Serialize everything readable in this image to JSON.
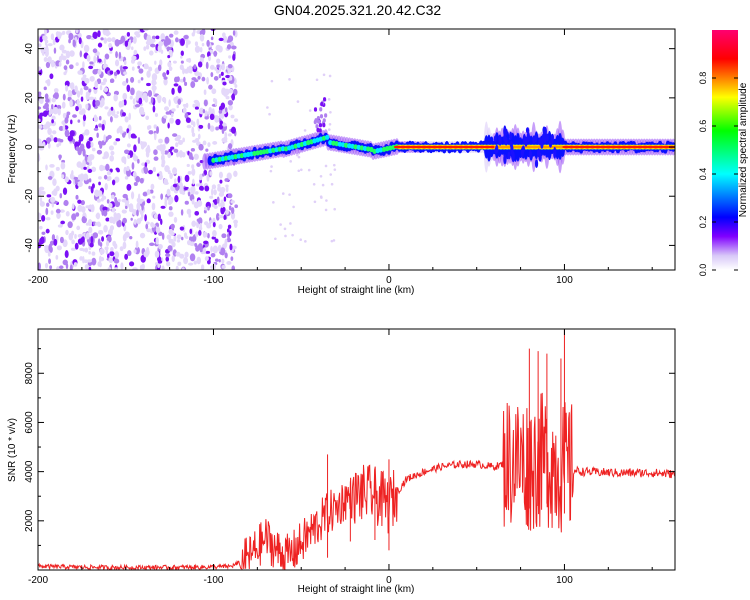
{
  "chart_data": [
    {
      "type": "heatmap",
      "title": "GN04.2025.321.20.42.C32",
      "xlabel": "Height of straight line (km)",
      "ylabel": "Frequency (Hz)",
      "xlim": [
        -200,
        163
      ],
      "ylim": [
        -50,
        48
      ],
      "xticks": [
        -200,
        -100,
        0,
        100
      ],
      "yticks": [
        -40,
        -20,
        0,
        20,
        40
      ],
      "colorbar": {
        "label": "Normalized spectral amplitude",
        "range": [
          0,
          1
        ],
        "ticks": [
          "0.0",
          "0.2",
          "0.4",
          "0.6",
          "0.8"
        ],
        "colormap": [
          "#ffffff",
          "#d8c8f8",
          "#8000ff",
          "#0000ff",
          "#00ffff",
          "#00ff00",
          "#ffff00",
          "#ff0000",
          "#ff00a0"
        ]
      },
      "features": {
        "noise_region_km": [
          -200,
          -87
        ],
        "carrier_frequency_hz": 0,
        "strong_carrier_km": [
          5,
          163
        ],
        "dispersed_echo_km": [
          60,
          95
        ]
      }
    },
    {
      "type": "line",
      "xlabel": "Height of straight line (km)",
      "ylabel": "SNR (10 * v/v)",
      "xlim": [
        -200,
        163
      ],
      "ylim": [
        0,
        9800
      ],
      "xticks": [
        -200,
        -100,
        0,
        100
      ],
      "yticks": [
        2000,
        4000,
        6000,
        8000
      ],
      "line_color": "#ee2222",
      "series": [
        {
          "x": [
            -200,
            -180,
            -150,
            -120,
            -100,
            -90,
            -85,
            -80,
            -75,
            -70,
            -65,
            -60,
            -55,
            -50,
            -45,
            -40,
            -35,
            -30,
            -25,
            -20,
            -15,
            -10,
            -5,
            0,
            5,
            10,
            20,
            30,
            40,
            50,
            60,
            65,
            70,
            75,
            80,
            85,
            90,
            95,
            100,
            105,
            110,
            130,
            150,
            163
          ],
          "y": [
            150,
            120,
            100,
            110,
            120,
            150,
            300,
            500,
            900,
            1300,
            900,
            500,
            700,
            1100,
            1500,
            1900,
            2300,
            2500,
            2900,
            3000,
            3100,
            3100,
            2900,
            2600,
            3200,
            3700,
            4000,
            4200,
            4300,
            4300,
            4200,
            4300,
            4500,
            4400,
            4300,
            4400,
            4500,
            4300,
            4100,
            4050,
            4000,
            3950,
            3950,
            3900
          ]
        }
      ],
      "spikes": [
        {
          "x": -35,
          "y": 4700
        },
        {
          "x": -22,
          "y": 3600
        },
        {
          "x": -8,
          "y": 3900
        },
        {
          "x": 0,
          "y": 4500
        },
        {
          "x": 80,
          "y": 9000
        },
        {
          "x": 85,
          "y": 8900
        },
        {
          "x": 90,
          "y": 8800
        },
        {
          "x": 98,
          "y": 8600
        },
        {
          "x": 100,
          "y": 9800
        }
      ]
    }
  ],
  "colorbar_ticks_label": "Normalized spectral amplitude"
}
